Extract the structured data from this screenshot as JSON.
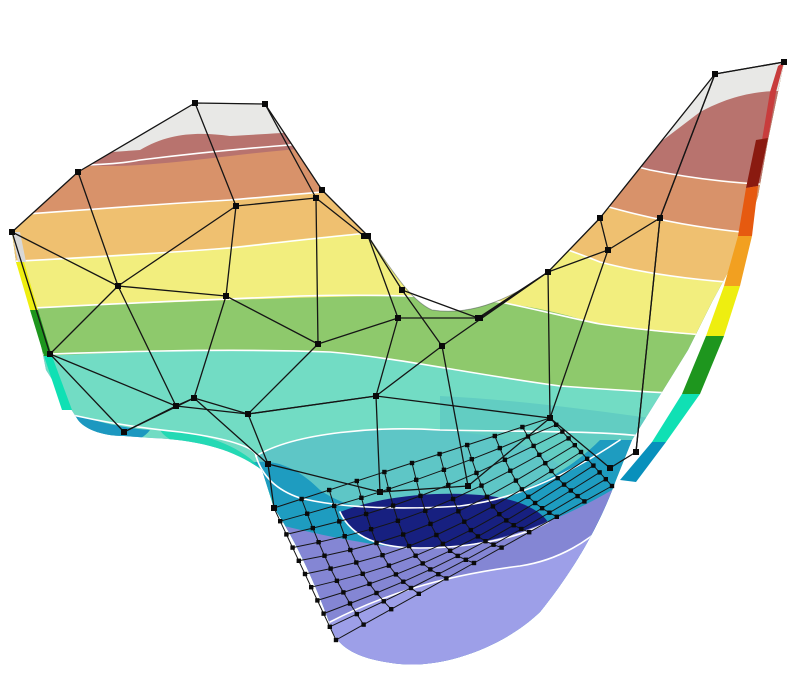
{
  "palette": {
    "cap": "#e6e6e6",
    "band_red": "#b8726e",
    "band_orange": "#d6916a",
    "band_amber": "#eec070",
    "band_yellow": "#f3ee7e",
    "band_green": "#8ec86c",
    "band_mint": "#76dcc0",
    "band_teal": "#5ec8c8",
    "band_blue": "#1e9ec0",
    "band_navy": "#18207e",
    "band_lavender": "#8c8ee0",
    "edge_red": "#c83c3c",
    "edge_darkred": "#8a1a10",
    "edge_orange": "#e65a10",
    "edge_amber": "#f2a020",
    "edge_yellow": "#eeee10",
    "edge_green": "#1e961e",
    "edge_mint": "#10e0b4",
    "edge_blue": "#0890bc",
    "edge_navy": "#101a78",
    "wireframe": "#151515",
    "background": "#ffffff"
  },
  "icons": {
    "surface": "saddle-surface-icon",
    "control_net": "control-net-icon",
    "refined_net": "refined-mesh-icon"
  }
}
